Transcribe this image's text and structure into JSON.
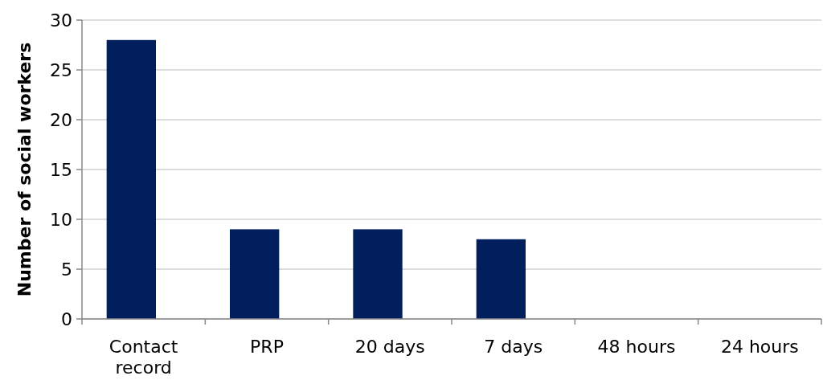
{
  "chart_data": {
    "type": "bar",
    "ylabel": "Number of social workers",
    "categories": [
      "Contact record",
      "PRP",
      "20 days",
      "7 days",
      "48 hours",
      "24 hours"
    ],
    "values": [
      28,
      9,
      9,
      8,
      0,
      0
    ],
    "color": "#001f5c",
    "ylim": [
      0,
      30
    ],
    "yticks": [
      0,
      5,
      10,
      15,
      20,
      25,
      30
    ],
    "grid": "y"
  }
}
